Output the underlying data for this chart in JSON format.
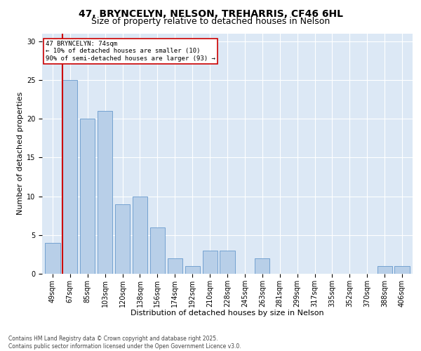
{
  "title1": "47, BRYNCELYN, NELSON, TREHARRIS, CF46 6HL",
  "title2": "Size of property relative to detached houses in Nelson",
  "xlabel": "Distribution of detached houses by size in Nelson",
  "ylabel": "Number of detached properties",
  "categories": [
    "49sqm",
    "67sqm",
    "85sqm",
    "103sqm",
    "120sqm",
    "138sqm",
    "156sqm",
    "174sqm",
    "192sqm",
    "210sqm",
    "228sqm",
    "245sqm",
    "263sqm",
    "281sqm",
    "299sqm",
    "317sqm",
    "335sqm",
    "352sqm",
    "370sqm",
    "388sqm",
    "406sqm"
  ],
  "values": [
    4,
    25,
    20,
    21,
    9,
    10,
    6,
    2,
    1,
    3,
    3,
    0,
    2,
    0,
    0,
    0,
    0,
    0,
    0,
    1,
    1
  ],
  "bar_color": "#b8cfe8",
  "bar_edge_color": "#6699cc",
  "vline_color": "#cc0000",
  "annotation_text": "47 BRYNCELYN: 74sqm\n← 10% of detached houses are smaller (10)\n90% of semi-detached houses are larger (93) →",
  "annotation_box_color": "#ffffff",
  "annotation_box_edge": "#cc0000",
  "ylim": [
    0,
    31
  ],
  "yticks": [
    0,
    5,
    10,
    15,
    20,
    25,
    30
  ],
  "background_color": "#dce8f5",
  "footer": "Contains HM Land Registry data © Crown copyright and database right 2025.\nContains public sector information licensed under the Open Government Licence v3.0.",
  "title1_fontsize": 10,
  "title2_fontsize": 9,
  "xlabel_fontsize": 8,
  "ylabel_fontsize": 8,
  "tick_fontsize": 7,
  "footer_fontsize": 5.5
}
